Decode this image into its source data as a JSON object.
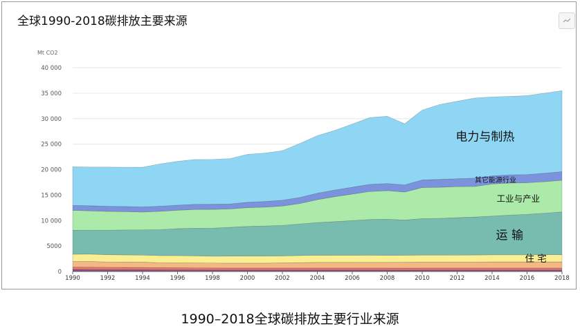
{
  "chart_data": {
    "type": "area",
    "stacked": true,
    "title": "全球1990-2018碳排放主要来源",
    "ylabel": "Mt CO2",
    "xlabel": "",
    "ylim": [
      0,
      40000
    ],
    "y_ticks": [
      "0",
      "5000",
      "10 000",
      "15 000",
      "20 000",
      "25 000",
      "30 000",
      "35 000",
      "40 000"
    ],
    "x_ticks": [
      "1990",
      "1992",
      "1994",
      "1996",
      "1998",
      "2000",
      "2002",
      "2004",
      "2006",
      "2008",
      "2010",
      "2012",
      "2014",
      "2016",
      "2018"
    ],
    "grid": "horizontal",
    "legend": "none",
    "x": [
      1990,
      1991,
      1992,
      1993,
      1994,
      1995,
      1996,
      1997,
      1998,
      1999,
      2000,
      2001,
      2002,
      2003,
      2004,
      2005,
      2006,
      2007,
      2008,
      2009,
      2010,
      2011,
      2012,
      2013,
      2014,
      2015,
      2016,
      2017,
      2018
    ],
    "series": [
      {
        "name": "",
        "color": "#8a4a8a",
        "values": [
          400,
          380,
          360,
          350,
          340,
          330,
          320,
          310,
          300,
          290,
          290,
          290,
          290,
          290,
          290,
          290,
          290,
          290,
          290,
          280,
          290,
          290,
          290,
          290,
          290,
          290,
          290,
          290,
          290
        ]
      },
      {
        "name": "",
        "color": "#e07868",
        "values": [
          500,
          480,
          470,
          460,
          450,
          440,
          430,
          420,
          410,
          400,
          400,
          400,
          400,
          400,
          400,
          400,
          400,
          400,
          400,
          390,
          400,
          400,
          400,
          400,
          400,
          400,
          400,
          400,
          400
        ]
      },
      {
        "name": "",
        "color": "#f3b883",
        "values": [
          1100,
          1100,
          1050,
          1050,
          1050,
          950,
          950,
          950,
          950,
          950,
          950,
          950,
          1000,
          1050,
          1100,
          1100,
          1100,
          1100,
          1100,
          1150,
          1150,
          1150,
          1150,
          1150,
          1200,
          1200,
          1200,
          1200,
          1200
        ]
      },
      {
        "name": "住 宅",
        "color": "#fbef93",
        "values": [
          1400,
          1450,
          1420,
          1400,
          1380,
          1400,
          1420,
          1400,
          1340,
          1380,
          1400,
          1400,
          1360,
          1400,
          1420,
          1400,
          1400,
          1420,
          1380,
          1380,
          1390,
          1390,
          1380,
          1400,
          1380,
          1380,
          1380,
          1400,
          1410
        ]
      },
      {
        "name": "运 输",
        "color": "#78bcb0",
        "values": [
          4700,
          4700,
          4800,
          4900,
          4950,
          5100,
          5300,
          5400,
          5500,
          5650,
          5800,
          5900,
          6000,
          6200,
          6400,
          6600,
          6800,
          7000,
          7100,
          6900,
          7150,
          7200,
          7350,
          7450,
          7600,
          7800,
          7950,
          8150,
          8400
        ]
      },
      {
        "name": "工业与产业",
        "color": "#abeaa9",
        "values": [
          3900,
          3800,
          3700,
          3600,
          3500,
          3600,
          3600,
          3700,
          3700,
          3600,
          3700,
          3700,
          3800,
          4000,
          4500,
          4900,
          5200,
          5500,
          5600,
          5500,
          6100,
          6100,
          6100,
          6000,
          6300,
          6300,
          6200,
          6200,
          6200
        ]
      },
      {
        "name": "其它能源行业",
        "color": "#7b93dc",
        "values": [
          1000,
          1000,
          1000,
          1000,
          1000,
          1000,
          1000,
          1000,
          1000,
          1000,
          1050,
          1100,
          1150,
          1200,
          1250,
          1300,
          1350,
          1400,
          1400,
          1400,
          1500,
          1550,
          1550,
          1650,
          1600,
          1600,
          1600,
          1650,
          1700
        ]
      },
      {
        "name": "电力与制热",
        "color": "#8fd6f5",
        "values": [
          7550,
          7600,
          7700,
          7700,
          7800,
          8300,
          8600,
          8800,
          8800,
          8900,
          9400,
          9500,
          9700,
          10600,
          11300,
          11700,
          12400,
          13100,
          13200,
          12000,
          13700,
          14700,
          15200,
          15700,
          15500,
          15400,
          15500,
          15700,
          15900
        ]
      }
    ]
  },
  "caption": "1990–2018全球碳排放主要行业来源"
}
